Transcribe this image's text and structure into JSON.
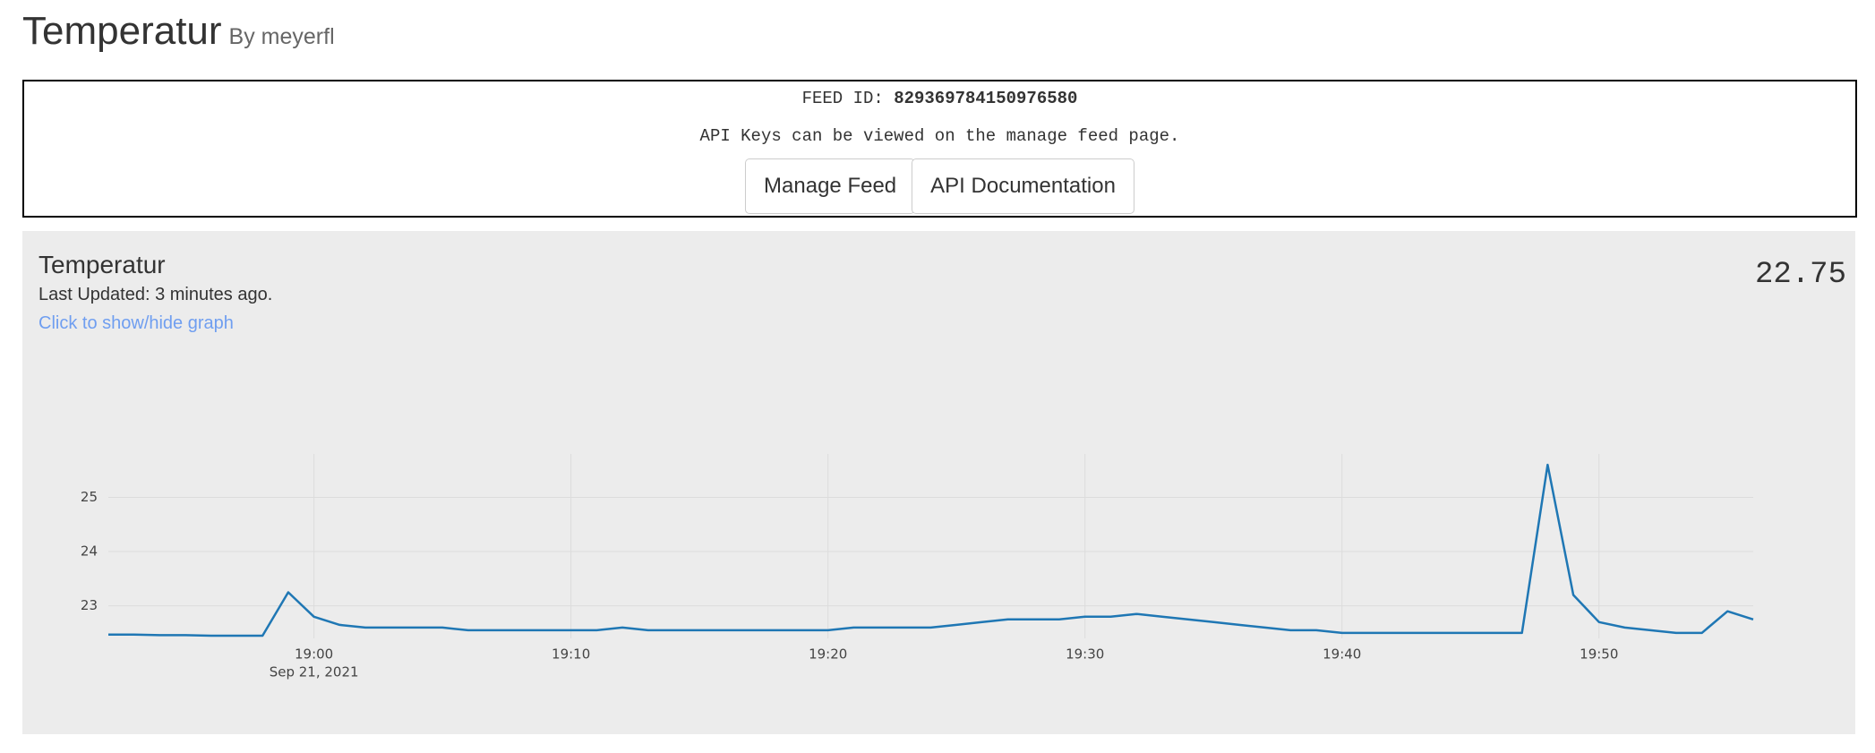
{
  "header": {
    "title": "Temperatur",
    "byline": "By meyerfl"
  },
  "feed_box": {
    "feed_id_label": "FEED ID:",
    "feed_id": "829369784150976580",
    "note": "API Keys can be viewed on the manage feed page.",
    "buttons": [
      "Manage Feed",
      "API Documentation"
    ]
  },
  "panel": {
    "title": "Temperatur",
    "last_updated": "Last Updated: 3 minutes ago.",
    "toggle": "Click to show/hide graph",
    "current_value": "22.75"
  },
  "chart_data": {
    "type": "line",
    "color": "#1f77b4",
    "grid": true,
    "x": [
      "18:52",
      "18:53",
      "18:54",
      "18:55",
      "18:56",
      "18:57",
      "18:58",
      "18:59",
      "19:00",
      "19:01",
      "19:02",
      "19:03",
      "19:04",
      "19:05",
      "19:06",
      "19:07",
      "19:08",
      "19:09",
      "19:10",
      "19:11",
      "19:12",
      "19:13",
      "19:14",
      "19:15",
      "19:16",
      "19:17",
      "19:18",
      "19:19",
      "19:20",
      "19:21",
      "19:22",
      "19:23",
      "19:24",
      "19:25",
      "19:26",
      "19:27",
      "19:28",
      "19:29",
      "19:30",
      "19:31",
      "19:32",
      "19:33",
      "19:34",
      "19:35",
      "19:36",
      "19:37",
      "19:38",
      "19:39",
      "19:40",
      "19:41",
      "19:42",
      "19:43",
      "19:44",
      "19:45",
      "19:46",
      "19:47",
      "19:48",
      "19:49",
      "19:50",
      "19:51",
      "19:52",
      "19:53",
      "19:54",
      "19:55",
      "19:56"
    ],
    "values": [
      22.47,
      22.47,
      22.46,
      22.46,
      22.45,
      22.45,
      22.45,
      23.25,
      22.8,
      22.65,
      22.6,
      22.6,
      22.6,
      22.6,
      22.55,
      22.55,
      22.55,
      22.55,
      22.55,
      22.55,
      22.6,
      22.55,
      22.55,
      22.55,
      22.55,
      22.55,
      22.55,
      22.55,
      22.55,
      22.6,
      22.6,
      22.6,
      22.6,
      22.65,
      22.7,
      22.75,
      22.75,
      22.75,
      22.8,
      22.8,
      22.85,
      22.8,
      22.75,
      22.7,
      22.65,
      22.6,
      22.55,
      22.55,
      22.5,
      22.5,
      22.5,
      22.5,
      22.5,
      22.5,
      22.5,
      22.5,
      25.6,
      23.2,
      22.7,
      22.6,
      22.55,
      22.5,
      22.5,
      22.9,
      22.75
    ],
    "xlim": [
      "18:52",
      "19:56"
    ],
    "xticks": [
      "19:00",
      "19:10",
      "19:20",
      "19:30",
      "19:40",
      "19:50"
    ],
    "date_label": "Sep 21, 2021",
    "ylim": [
      22.4,
      25.8
    ],
    "yticks": [
      23,
      24,
      25
    ]
  }
}
